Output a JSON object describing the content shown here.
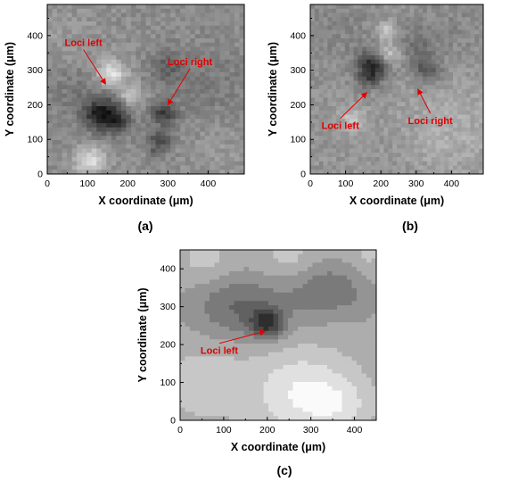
{
  "annotation_color": "#e00000",
  "chart_data": [
    {
      "type": "heatmap",
      "panel_label": "(a)",
      "xlabel": "X coordinate (μm)",
      "ylabel": "Y coordinate (μm)",
      "xlim": [
        0,
        490
      ],
      "ylim": [
        0,
        490
      ],
      "xticks": [
        0,
        100,
        200,
        300,
        400
      ],
      "yticks": [
        0,
        100,
        200,
        300,
        400
      ],
      "colormap": "grayscale",
      "render": "noisy",
      "baseline": 0.55,
      "features": [
        {
          "x": 150,
          "y": 170,
          "r": 34,
          "v": -0.44
        },
        {
          "x": 110,
          "y": 175,
          "r": 18,
          "v": -0.12
        },
        {
          "x": 180,
          "y": 150,
          "r": 18,
          "v": -0.1
        },
        {
          "x": 160,
          "y": 290,
          "r": 26,
          "v": 0.36
        },
        {
          "x": 205,
          "y": 225,
          "r": 24,
          "v": 0.22
        },
        {
          "x": 105,
          "y": 40,
          "r": 28,
          "v": 0.32
        },
        {
          "x": 80,
          "y": 240,
          "r": 60,
          "v": -0.08
        },
        {
          "x": 290,
          "y": 175,
          "r": 22,
          "v": -0.3
        },
        {
          "x": 282,
          "y": 100,
          "r": 22,
          "v": -0.24
        },
        {
          "x": 270,
          "y": 60,
          "r": 14,
          "v": -0.14
        },
        {
          "x": 300,
          "y": 310,
          "r": 30,
          "v": -0.16
        },
        {
          "x": 400,
          "y": 250,
          "r": 80,
          "v": -0.07
        },
        {
          "x": 60,
          "y": 380,
          "r": 70,
          "v": 0.05
        },
        {
          "x": 430,
          "y": 80,
          "r": 70,
          "v": 0.05
        }
      ],
      "annotations": [
        {
          "text": "Loci left",
          "text_at": [
            90,
            370
          ],
          "arrow_to": [
            145,
            260
          ]
        },
        {
          "text": "Loci right",
          "text_at": [
            355,
            315
          ],
          "arrow_to": [
            300,
            200
          ]
        }
      ]
    },
    {
      "type": "heatmap",
      "panel_label": "(b)",
      "xlabel": "X coordinate (μm)",
      "ylabel": "Y coordinate (μm)",
      "xlim": [
        0,
        490
      ],
      "ylim": [
        0,
        490
      ],
      "xticks": [
        0,
        100,
        200,
        300,
        400
      ],
      "yticks": [
        0,
        100,
        200,
        300,
        400
      ],
      "colormap": "grayscale",
      "render": "noisy",
      "baseline": 0.58,
      "features": [
        {
          "x": 175,
          "y": 310,
          "r": 30,
          "v": -0.42
        },
        {
          "x": 160,
          "y": 270,
          "r": 20,
          "v": -0.12
        },
        {
          "x": 225,
          "y": 345,
          "r": 22,
          "v": 0.22
        },
        {
          "x": 215,
          "y": 415,
          "r": 18,
          "v": 0.22
        },
        {
          "x": 330,
          "y": 300,
          "r": 28,
          "v": -0.22
        },
        {
          "x": 300,
          "y": 370,
          "r": 40,
          "v": -0.12
        },
        {
          "x": 120,
          "y": 160,
          "r": 24,
          "v": 0.18
        },
        {
          "x": 400,
          "y": 130,
          "r": 100,
          "v": 0.1
        },
        {
          "x": 80,
          "y": 420,
          "r": 80,
          "v": -0.06
        },
        {
          "x": 420,
          "y": 430,
          "r": 80,
          "v": -0.05
        }
      ],
      "annotations": [
        {
          "text": "Loci left",
          "text_at": [
            85,
            130
          ],
          "arrow_to": [
            160,
            235
          ]
        },
        {
          "text": "Loci right",
          "text_at": [
            340,
            145
          ],
          "arrow_to": [
            305,
            245
          ]
        }
      ]
    },
    {
      "type": "heatmap",
      "panel_label": "(c)",
      "xlabel": "X coordinate (μm)",
      "ylabel": "Y coordinate (μm)",
      "xlim": [
        0,
        450
      ],
      "ylim": [
        0,
        450
      ],
      "xticks": [
        0,
        100,
        200,
        300,
        400
      ],
      "yticks": [
        0,
        100,
        200,
        300,
        400
      ],
      "colormap": "grayscale",
      "render": "contour",
      "levels": 9,
      "baseline": 0.6,
      "features": [
        {
          "x": 200,
          "y": 255,
          "r": 26,
          "v": -0.45
        },
        {
          "x": 170,
          "y": 295,
          "r": 55,
          "v": -0.2
        },
        {
          "x": 90,
          "y": 300,
          "r": 60,
          "v": -0.16
        },
        {
          "x": 300,
          "y": 330,
          "r": 55,
          "v": -0.16
        },
        {
          "x": 360,
          "y": 360,
          "r": 45,
          "v": -0.12
        },
        {
          "x": 410,
          "y": 310,
          "r": 40,
          "v": -0.08
        },
        {
          "x": 280,
          "y": 70,
          "r": 80,
          "v": 0.3
        },
        {
          "x": 370,
          "y": 40,
          "r": 50,
          "v": 0.15
        },
        {
          "x": 60,
          "y": 100,
          "r": 70,
          "v": 0.14
        },
        {
          "x": 60,
          "y": 420,
          "r": 40,
          "v": 0.12
        },
        {
          "x": 250,
          "y": 430,
          "r": 40,
          "v": 0.12
        },
        {
          "x": 430,
          "y": 440,
          "r": 30,
          "v": 0.1
        }
      ],
      "annotations": [
        {
          "text": "Loci left",
          "text_at": [
            90,
            175
          ],
          "arrow_to": [
            195,
            235
          ]
        }
      ]
    }
  ]
}
